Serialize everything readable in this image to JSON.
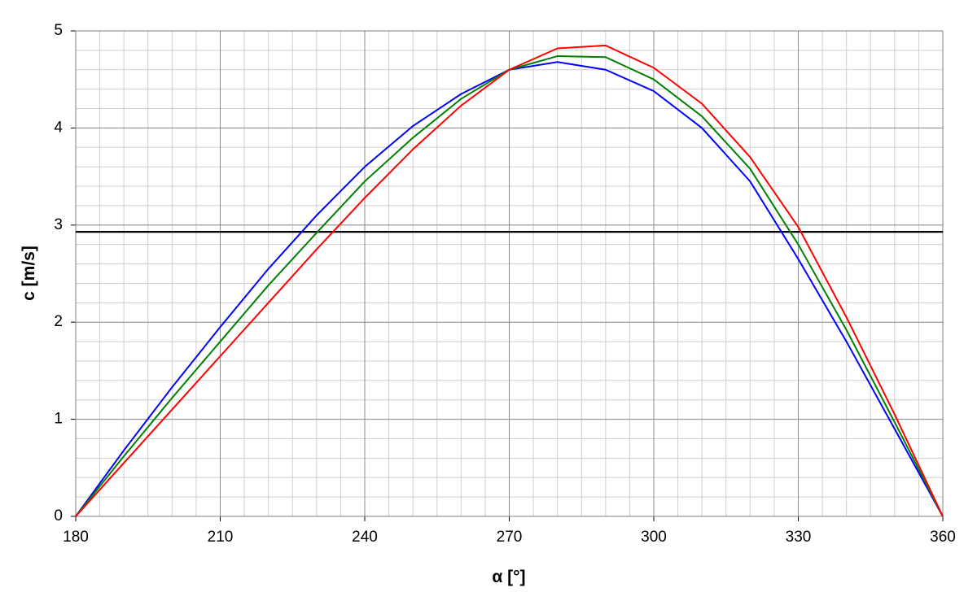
{
  "chart_data": {
    "type": "line",
    "xlabel": "α [°]",
    "ylabel": "c [m/s]",
    "x": [
      180,
      190,
      200,
      210,
      220,
      230,
      240,
      250,
      260,
      270,
      280,
      290,
      300,
      310,
      320,
      330,
      340,
      350,
      360
    ],
    "series": [
      {
        "color": "#0000ff",
        "values": [
          0,
          0.68,
          1.33,
          1.95,
          2.55,
          3.1,
          3.6,
          4.02,
          4.35,
          4.6,
          4.68,
          4.6,
          4.38,
          4.0,
          3.45,
          2.65,
          1.8,
          0.9,
          0
        ]
      },
      {
        "color": "#008000",
        "values": [
          0,
          0.62,
          1.22,
          1.8,
          2.38,
          2.92,
          3.45,
          3.9,
          4.3,
          4.6,
          4.74,
          4.73,
          4.5,
          4.12,
          3.58,
          2.8,
          1.92,
          0.97,
          0
        ]
      },
      {
        "color": "#ff0000",
        "values": [
          0,
          0.55,
          1.1,
          1.65,
          2.2,
          2.75,
          3.28,
          3.78,
          4.23,
          4.6,
          4.82,
          4.85,
          4.62,
          4.25,
          3.7,
          2.98,
          2.05,
          1.05,
          0
        ]
      }
    ],
    "hline": {
      "value": 2.93,
      "color": "#000000"
    },
    "xlim": [
      180,
      360
    ],
    "ylim": [
      0,
      5
    ],
    "xticks": [
      180,
      210,
      240,
      270,
      300,
      330,
      360
    ],
    "yticks": [
      0,
      1,
      2,
      3,
      4,
      5
    ],
    "grid": true,
    "minor_grid": {
      "x": 5,
      "y": 0.2
    }
  }
}
